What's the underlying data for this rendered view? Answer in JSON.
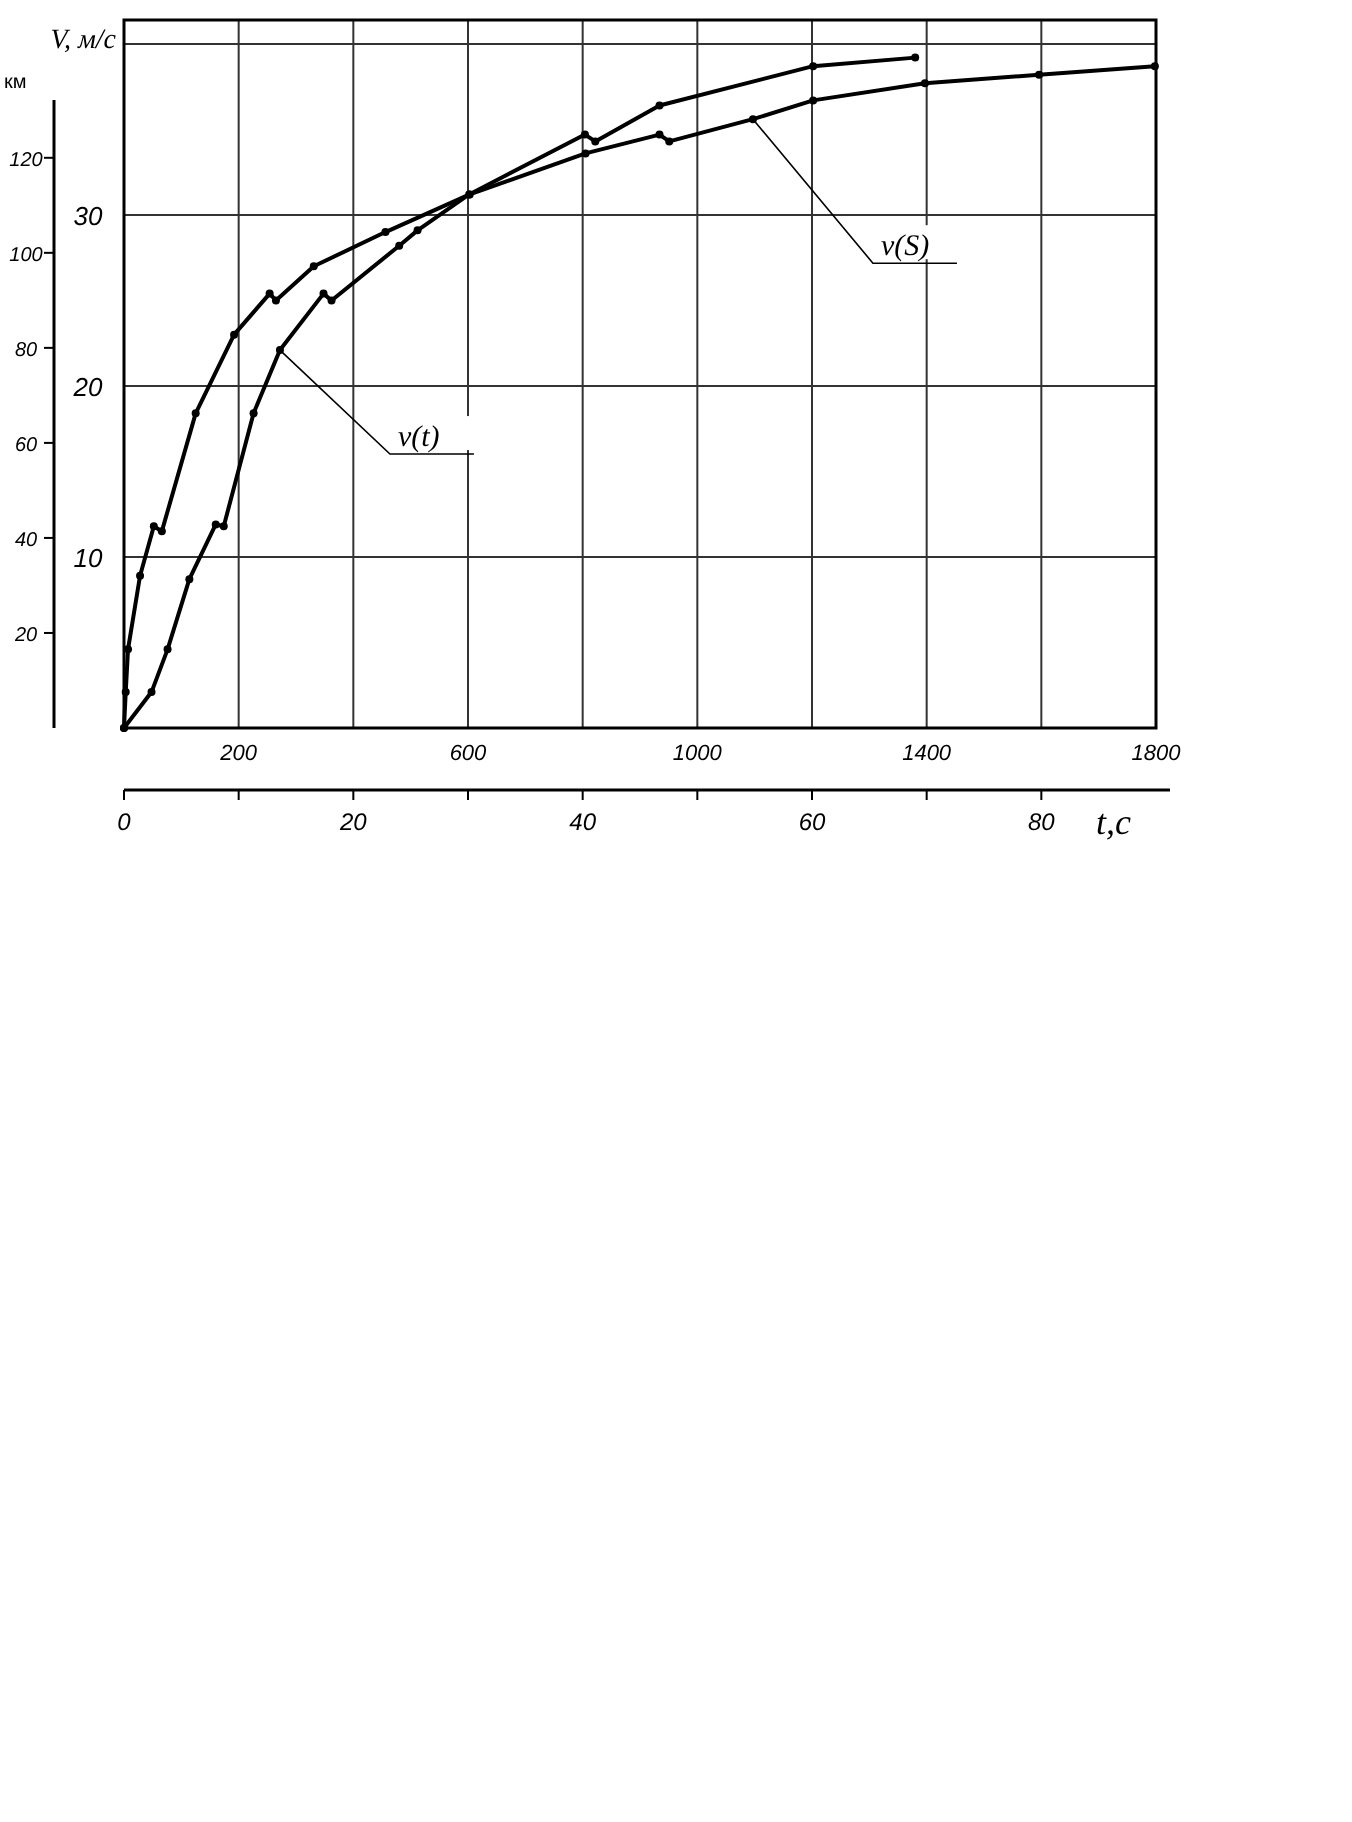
{
  "chart_data": {
    "type": "line",
    "ylabel": "V, м/с",
    "y2label": "км",
    "x2label": "t,c",
    "xlim": [
      0,
      1800
    ],
    "xticks": [
      {
        "value": 0,
        "label": null
      },
      200,
      {
        "value": 400,
        "label": null
      },
      600,
      {
        "value": 800,
        "label": null
      },
      1000,
      {
        "value": 1200,
        "label": null
      },
      1400,
      {
        "value": 1600,
        "label": null
      },
      1800
    ],
    "x2lim": [
      0,
      90
    ],
    "x2ticks": [
      0,
      {
        "value": 10,
        "label": null
      },
      20,
      {
        "value": 30,
        "label": null
      },
      40,
      {
        "value": 50,
        "label": null
      },
      60,
      {
        "value": 70,
        "label": null
      },
      80
    ],
    "ylim": [
      0,
      41.4
    ],
    "yticks": [
      10,
      20,
      30,
      {
        "value": 40,
        "label": null
      }
    ],
    "y2lim": [
      0,
      149
    ],
    "y2ticks": [
      20,
      40,
      60,
      80,
      100,
      120
    ],
    "grid": true,
    "marker": "circle",
    "line_style": "solid",
    "series": [
      {
        "name": "v(t)",
        "color": "#000000",
        "axis": "x2",
        "x": [
          0,
          2.4,
          3.8,
          5.7,
          8.0,
          8.7,
          11.3,
          13.6,
          17.4,
          18.1,
          24.0,
          25.6,
          30.1,
          40.2,
          41.1,
          46.7,
          60.1,
          69.0
        ],
        "values": [
          0,
          2.1,
          4.6,
          8.7,
          11.9,
          11.8,
          18.4,
          22.1,
          25.4,
          25.0,
          28.2,
          29.1,
          31.2,
          34.7,
          34.3,
          36.4,
          38.7,
          39.2
        ]
      },
      {
        "name": "v(S)",
        "color": "#000000",
        "x": [
          0,
          3,
          7,
          28,
          52,
          66,
          125,
          192,
          254,
          265,
          331,
          456,
          603,
          805,
          934,
          951,
          1097,
          1202,
          1397,
          1596,
          1798
        ],
        "values": [
          0,
          2.1,
          4.6,
          8.9,
          11.8,
          11.5,
          18.4,
          23.0,
          25.4,
          25.0,
          27.0,
          29.0,
          31.2,
          33.6,
          34.7,
          34.3,
          35.6,
          36.7,
          37.7,
          38.2,
          38.7
        ]
      }
    ]
  }
}
